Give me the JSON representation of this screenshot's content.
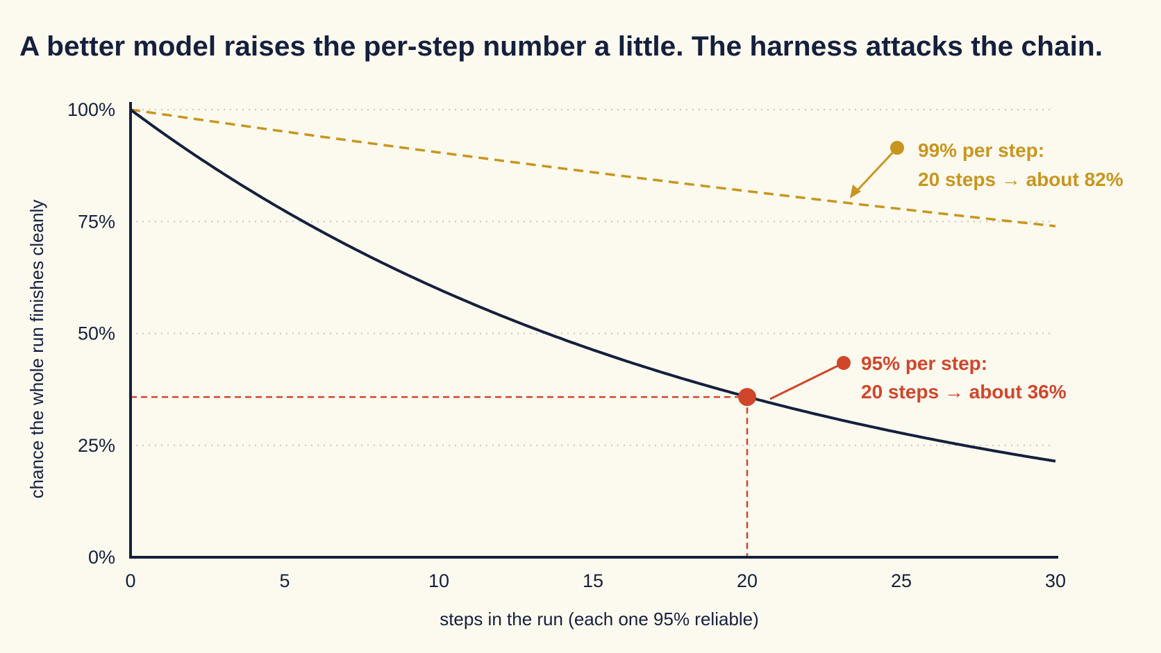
{
  "chart_data": {
    "type": "line",
    "title": "A better model raises the per-step number a little. The harness attacks the chain.",
    "xlabel": "steps in the run (each one 95% reliable)",
    "ylabel": "chance the whole run finishes cleanly",
    "xlim": [
      0,
      30
    ],
    "ylim": [
      0,
      100
    ],
    "x_ticks": [
      "0",
      "5",
      "10",
      "15",
      "20",
      "25",
      "30"
    ],
    "y_ticks": [
      "0%",
      "25%",
      "50%",
      "75%",
      "100%"
    ],
    "grid": "horizontal dotted",
    "x": [
      0,
      2,
      4,
      6,
      8,
      10,
      12,
      14,
      16,
      18,
      20,
      22,
      24,
      26,
      28,
      30
    ],
    "series": [
      {
        "per_step": 0.95,
        "style": "solid",
        "color": "#14203d",
        "values": [
          100,
          90.3,
          81.5,
          73.5,
          66.3,
          59.9,
          54.0,
          48.8,
          44.0,
          39.7,
          35.8,
          32.4,
          29.2,
          26.4,
          23.8,
          21.5
        ]
      },
      {
        "per_step": 0.99,
        "style": "dashed",
        "color": "#c8961e",
        "values": [
          100,
          98.0,
          96.1,
          94.1,
          92.3,
          90.4,
          88.6,
          86.9,
          85.1,
          83.5,
          81.8,
          80.2,
          78.6,
          77.0,
          75.5,
          74.0
        ]
      }
    ],
    "annotations": [
      {
        "line1": "99% per step:",
        "line2": "20 steps → about 82%",
        "color": "#c8961e",
        "points_to": {
          "x": 23,
          "y": 81
        }
      },
      {
        "line1": "95% per step:",
        "line2": "20 steps → about 36%",
        "color": "#d0462a",
        "highlight": {
          "x": 20,
          "y": 35.8
        }
      }
    ]
  }
}
